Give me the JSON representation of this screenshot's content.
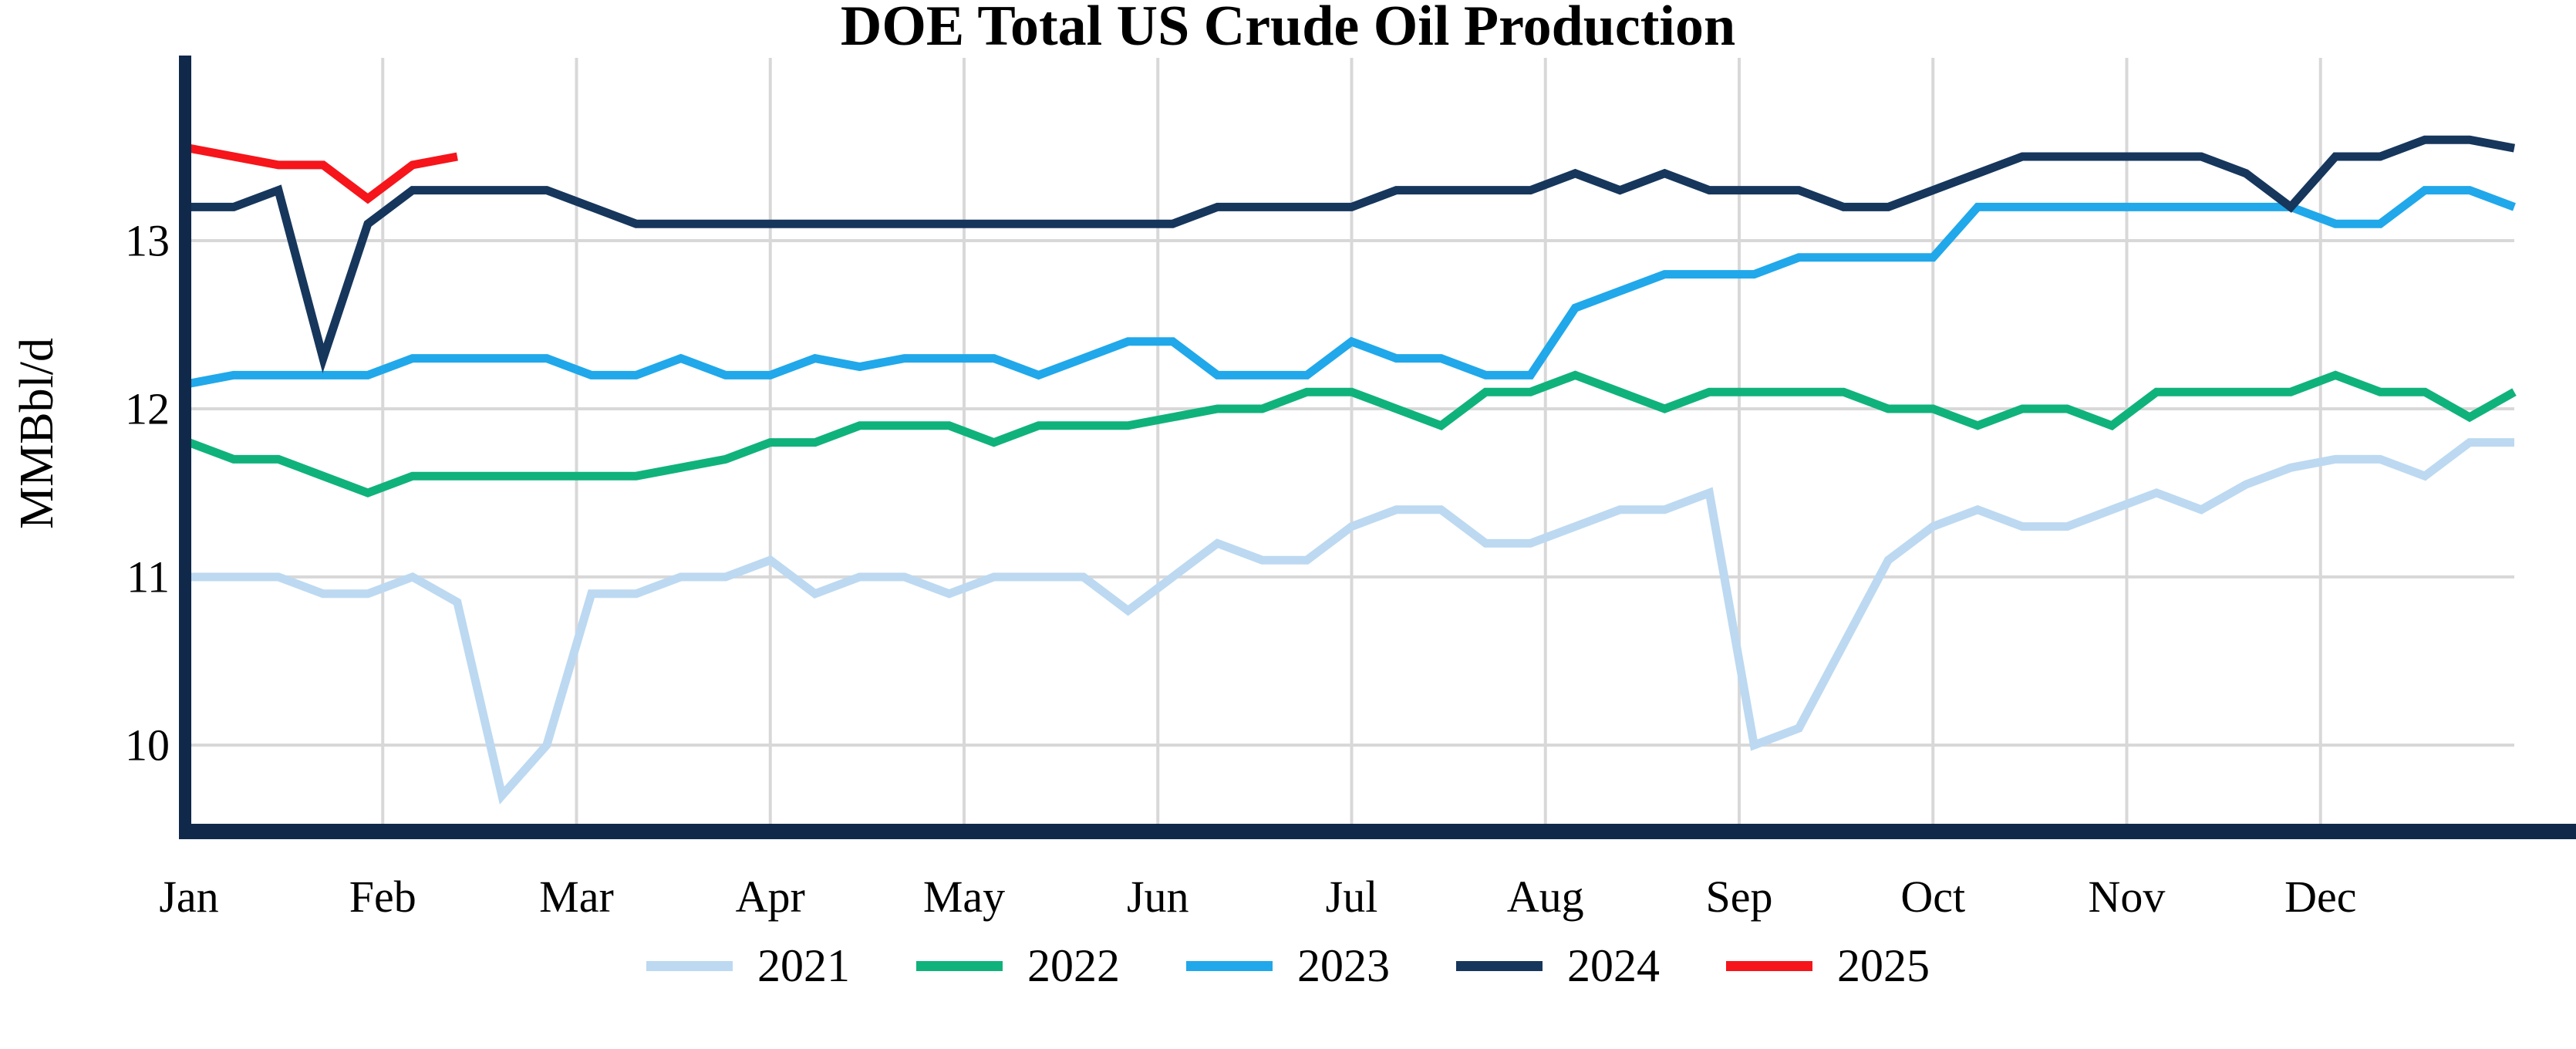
{
  "title": "DOE Total US Crude Oil Production",
  "y_axis": {
    "label": "MMBbl/d",
    "ticks": [
      13,
      12,
      11,
      10
    ]
  },
  "x_axis": {
    "months": [
      "Jan",
      "Feb",
      "Mar",
      "Apr",
      "May",
      "Jun",
      "Jul",
      "Aug",
      "Sep",
      "Oct",
      "Nov",
      "Dec"
    ]
  },
  "colors": {
    "background": "#FFFFFF",
    "grid": "#D8D8D8",
    "axis_spine": "#10294B",
    "text": "#000000"
  },
  "chart_data": {
    "type": "line",
    "title": "DOE Total US Crude Oil Production",
    "xlabel": "",
    "ylabel": "MMBbl/d",
    "x_unit": "weekly data, week index 0-52 across Jan-Dec",
    "ylim": [
      9.45,
      14.1
    ],
    "yticks": [
      10,
      11,
      12,
      13
    ],
    "xticklabels": [
      "Jan",
      "Feb",
      "Mar",
      "Apr",
      "May",
      "Jun",
      "Jul",
      "Aug",
      "Sep",
      "Oct",
      "Nov",
      "Dec"
    ],
    "grid": true,
    "legend_position": "bottom",
    "series": [
      {
        "name": "2021",
        "color": "#BCD9F1",
        "values": [
          11.0,
          11.0,
          11.0,
          10.9,
          10.9,
          11.0,
          10.85,
          9.7,
          10.0,
          10.9,
          10.9,
          11.0,
          11.0,
          11.1,
          10.9,
          11.0,
          11.0,
          10.9,
          11.0,
          11.0,
          11.0,
          10.8,
          11.0,
          11.2,
          11.1,
          11.1,
          11.3,
          11.4,
          11.4,
          11.2,
          11.2,
          11.3,
          11.4,
          11.4,
          11.5,
          10.0,
          10.1,
          10.6,
          11.1,
          11.3,
          11.4,
          11.3,
          11.3,
          11.4,
          11.5,
          11.4,
          11.55,
          11.65,
          11.7,
          11.7,
          11.6,
          11.8,
          11.8
        ]
      },
      {
        "name": "2022",
        "color": "#10B27B",
        "values": [
          11.8,
          11.7,
          11.7,
          11.6,
          11.5,
          11.6,
          11.6,
          11.6,
          11.6,
          11.6,
          11.6,
          11.65,
          11.7,
          11.8,
          11.8,
          11.9,
          11.9,
          11.9,
          11.8,
          11.9,
          11.9,
          11.9,
          11.95,
          12.0,
          12.0,
          12.1,
          12.1,
          12.0,
          11.9,
          12.1,
          12.1,
          12.2,
          12.1,
          12.0,
          12.1,
          12.1,
          12.1,
          12.1,
          12.0,
          12.0,
          11.9,
          12.0,
          12.0,
          11.9,
          12.1,
          12.1,
          12.1,
          12.1,
          12.2,
          12.1,
          12.1,
          11.95,
          12.1
        ]
      },
      {
        "name": "2023",
        "color": "#20A8EA",
        "values": [
          12.15,
          12.2,
          12.2,
          12.2,
          12.2,
          12.3,
          12.3,
          12.3,
          12.3,
          12.2,
          12.2,
          12.3,
          12.2,
          12.2,
          12.3,
          12.25,
          12.3,
          12.3,
          12.3,
          12.2,
          12.3,
          12.4,
          12.4,
          12.2,
          12.2,
          12.2,
          12.4,
          12.3,
          12.3,
          12.2,
          12.2,
          12.6,
          12.7,
          12.8,
          12.8,
          12.8,
          12.9,
          12.9,
          12.9,
          12.9,
          13.2,
          13.2,
          13.2,
          13.2,
          13.2,
          13.2,
          13.2,
          13.2,
          13.1,
          13.1,
          13.3,
          13.3,
          13.2
        ]
      },
      {
        "name": "2024",
        "color": "#16365C",
        "values": [
          13.2,
          13.2,
          13.3,
          12.3,
          13.1,
          13.3,
          13.3,
          13.3,
          13.3,
          13.2,
          13.1,
          13.1,
          13.1,
          13.1,
          13.1,
          13.1,
          13.1,
          13.1,
          13.1,
          13.1,
          13.1,
          13.1,
          13.1,
          13.2,
          13.2,
          13.2,
          13.2,
          13.3,
          13.3,
          13.3,
          13.3,
          13.4,
          13.3,
          13.4,
          13.3,
          13.3,
          13.3,
          13.2,
          13.2,
          13.3,
          13.4,
          13.5,
          13.5,
          13.5,
          13.5,
          13.5,
          13.4,
          13.2,
          13.5,
          13.5,
          13.6,
          13.6,
          13.55
        ]
      },
      {
        "name": "2025",
        "color": "#F5151B",
        "values": [
          13.55,
          13.5,
          13.45,
          13.45,
          13.25,
          13.45,
          13.5
        ]
      }
    ]
  }
}
